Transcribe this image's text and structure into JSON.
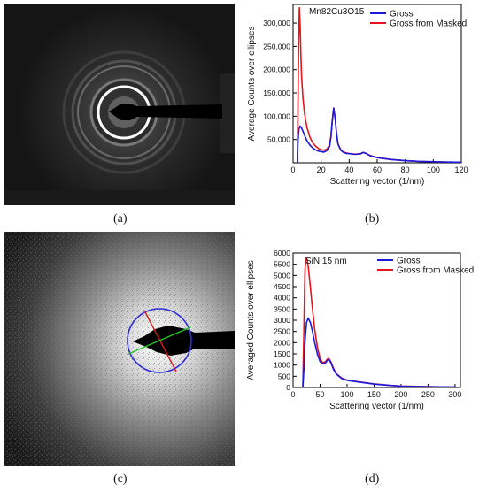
{
  "panels": {
    "a": {
      "caption": "(a)"
    },
    "b": {
      "caption": "(b)"
    },
    "c": {
      "caption": "(c)"
    },
    "d": {
      "caption": "(d)"
    }
  },
  "colors": {
    "gross": "#1a1adf",
    "masked": "#e8141a",
    "ring": "#2b2bd9",
    "diameter1": "#e01818",
    "diameter2": "#22c322"
  },
  "chart_data": [
    {
      "type": "line",
      "title": "Mn82Cu3O15",
      "xlabel": "Scattering vector (1/nm)",
      "ylabel": "Average Counts over ellipses",
      "xlim": [
        0,
        120
      ],
      "ylim": [
        0,
        340000
      ],
      "xticks": [
        "0",
        "20",
        "40",
        "60",
        "80",
        "100",
        "120"
      ],
      "yticks": [
        "50,000",
        "100,000",
        "150,000",
        "200,000",
        "250,000",
        "300,000"
      ],
      "legend": "top-right",
      "series": [
        {
          "name": "Gross",
          "x": [
            3.0,
            3.5,
            4.2,
            5,
            6,
            7,
            8,
            9,
            10,
            12,
            14,
            16,
            18,
            20,
            22,
            24,
            26,
            27,
            28,
            29,
            30,
            31,
            32,
            34,
            36,
            38,
            40,
            44,
            48,
            50,
            52,
            55,
            60,
            70,
            80,
            90,
            100,
            110,
            120
          ],
          "y": [
            0,
            45000,
            72000,
            79000,
            75000,
            68000,
            60000,
            53000,
            47000,
            38000,
            32000,
            28000,
            25000,
            24000,
            23000,
            26000,
            35000,
            55000,
            90000,
            117000,
            95000,
            62000,
            40000,
            27000,
            22000,
            20000,
            19500,
            18000,
            19000,
            22000,
            20000,
            15000,
            11000,
            7000,
            4500,
            3000,
            2200,
            1600,
            1200
          ]
        },
        {
          "name": "Gross from Masked",
          "x": [
            3.0,
            3.5,
            4.0,
            4.5,
            5,
            5.5,
            6,
            7,
            8,
            9,
            10,
            12,
            14,
            16,
            18,
            20,
            22,
            24,
            26,
            27,
            28,
            29,
            30,
            31,
            32,
            34,
            36,
            38,
            40,
            44,
            48,
            50,
            52,
            55,
            60,
            70,
            80,
            90,
            100,
            110,
            120
          ],
          "y": [
            0,
            120000,
            260000,
            333000,
            300000,
            240000,
            190000,
            140000,
            110000,
            90000,
            75000,
            55000,
            43000,
            36000,
            31000,
            28000,
            27000,
            29000,
            38000,
            58000,
            92000,
            118000,
            96000,
            63000,
            41000,
            28000,
            23000,
            21000,
            20000,
            18500,
            19500,
            22500,
            20500,
            15500,
            11000,
            7000,
            4500,
            3000,
            2200,
            1600,
            1200
          ]
        }
      ]
    },
    {
      "type": "line",
      "title": "SiN 15 nm",
      "xlabel": "Scattering vector (1/nm)",
      "ylabel": "Averaged Counts over ellipses",
      "xlim": [
        0,
        310
      ],
      "ylim": [
        0,
        6000
      ],
      "xticks": [
        "0",
        "50",
        "100",
        "150",
        "200",
        "250",
        "300"
      ],
      "yticks": [
        "0",
        "500",
        "1000",
        "1500",
        "2000",
        "2500",
        "3000",
        "3500",
        "4000",
        "4500",
        "5000",
        "5500",
        "6000"
      ],
      "legend": "top-right",
      "series": [
        {
          "name": "Gross",
          "x": [
            18,
            20,
            22,
            25,
            28,
            32,
            36,
            40,
            45,
            50,
            55,
            60,
            63,
            66,
            70,
            75,
            80,
            90,
            100,
            120,
            150,
            180,
            200,
            250,
            300,
            305
          ],
          "y": [
            0,
            800,
            2000,
            2900,
            3100,
            2900,
            2500,
            2000,
            1500,
            1150,
            1050,
            1100,
            1200,
            1250,
            1100,
            800,
            600,
            400,
            320,
            250,
            150,
            90,
            60,
            30,
            20,
            0
          ]
        },
        {
          "name": "Gross from Masked",
          "x": [
            18,
            20,
            22,
            24,
            26,
            28,
            32,
            36,
            40,
            45,
            50,
            55,
            60,
            63,
            66,
            70,
            75,
            80,
            90,
            100,
            120,
            150,
            180,
            200,
            250,
            300,
            305
          ],
          "y": [
            0,
            2500,
            5200,
            5800,
            5700,
            5400,
            4500,
            3500,
            2600,
            1800,
            1300,
            1100,
            1150,
            1250,
            1300,
            1150,
            850,
            620,
            420,
            330,
            260,
            160,
            95,
            65,
            35,
            20,
            0
          ]
        }
      ]
    }
  ]
}
